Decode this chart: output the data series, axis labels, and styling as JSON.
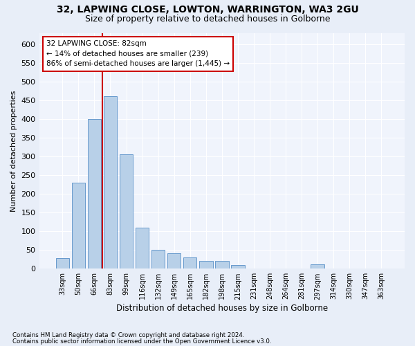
{
  "title1": "32, LAPWING CLOSE, LOWTON, WARRINGTON, WA3 2GU",
  "title2": "Size of property relative to detached houses in Golborne",
  "xlabel": "Distribution of detached houses by size in Golborne",
  "ylabel": "Number of detached properties",
  "categories": [
    "33sqm",
    "50sqm",
    "66sqm",
    "83sqm",
    "99sqm",
    "116sqm",
    "132sqm",
    "149sqm",
    "165sqm",
    "182sqm",
    "198sqm",
    "215sqm",
    "231sqm",
    "248sqm",
    "264sqm",
    "281sqm",
    "297sqm",
    "314sqm",
    "330sqm",
    "347sqm",
    "363sqm"
  ],
  "bar_values": [
    28,
    230,
    400,
    460,
    305,
    110,
    50,
    42,
    30,
    20,
    20,
    10,
    0,
    0,
    0,
    0,
    12,
    0,
    0,
    0,
    0
  ],
  "bar_color": "#b8d0e8",
  "bar_edge_color": "#6699cc",
  "vline_color": "#cc0000",
  "vline_x": 2.5,
  "annotation_text": "32 LAPWING CLOSE: 82sqm\n← 14% of detached houses are smaller (239)\n86% of semi-detached houses are larger (1,445) →",
  "annotation_box_color": "#ffffff",
  "annotation_box_edge": "#cc0000",
  "ylim": [
    0,
    630
  ],
  "yticks": [
    0,
    50,
    100,
    150,
    200,
    250,
    300,
    350,
    400,
    450,
    500,
    550,
    600
  ],
  "footnote1": "Contains HM Land Registry data © Crown copyright and database right 2024.",
  "footnote2": "Contains public sector information licensed under the Open Government Licence v3.0.",
  "bg_color": "#e8eef8",
  "plot_bg_color": "#f0f4fc",
  "grid_color": "#ffffff",
  "title1_fontsize": 10,
  "title2_fontsize": 9
}
